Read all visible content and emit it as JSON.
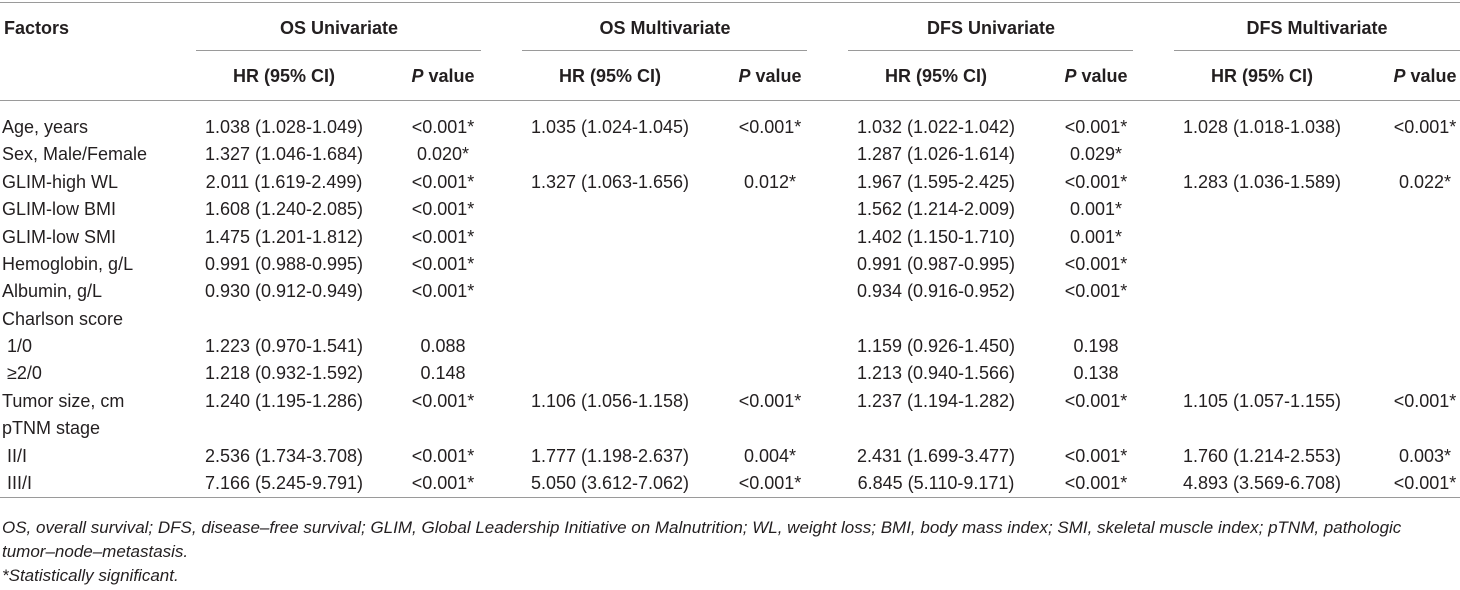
{
  "table": {
    "factor_header": "Factors",
    "groups": [
      "OS Univariate",
      "OS Multivariate",
      "DFS Univariate",
      "DFS Multivariate"
    ],
    "subheaders": [
      "HR (95% CI)",
      "P value"
    ],
    "rows": [
      {
        "label": "Age, years",
        "cells": [
          "1.038 (1.028-1.049)",
          "<0.001*",
          "1.035 (1.024-1.045)",
          "<0.001*",
          "1.032 (1.022-1.042)",
          "<0.001*",
          "1.028 (1.018-1.038)",
          "<0.001*"
        ]
      },
      {
        "label": "Sex, Male/Female",
        "cells": [
          "1.327 (1.046-1.684)",
          "0.020*",
          null,
          null,
          "1.287 (1.026-1.614)",
          "0.029*",
          null,
          null
        ]
      },
      {
        "label": "GLIM-high WL",
        "cells": [
          "2.011 (1.619-2.499)",
          "<0.001*",
          "1.327 (1.063-1.656)",
          "0.012*",
          "1.967 (1.595-2.425)",
          "<0.001*",
          "1.283 (1.036-1.589)",
          "0.022*"
        ]
      },
      {
        "label": "GLIM-low BMI",
        "cells": [
          "1.608 (1.240-2.085)",
          "<0.001*",
          null,
          null,
          "1.562 (1.214-2.009)",
          "0.001*",
          null,
          null
        ]
      },
      {
        "label": "GLIM-low SMI",
        "cells": [
          "1.475 (1.201-1.812)",
          "<0.001*",
          null,
          null,
          "1.402 (1.150-1.710)",
          "0.001*",
          null,
          null
        ]
      },
      {
        "label": "Hemoglobin, g/L",
        "cells": [
          "0.991 (0.988-0.995)",
          "<0.001*",
          null,
          null,
          "0.991 (0.987-0.995)",
          "<0.001*",
          null,
          null
        ]
      },
      {
        "label": "Albumin, g/L",
        "cells": [
          "0.930 (0.912-0.949)",
          "<0.001*",
          null,
          null,
          "0.934 (0.916-0.952)",
          "<0.001*",
          null,
          null
        ]
      },
      {
        "label": "Charlson score",
        "cells": [
          null,
          null,
          null,
          null,
          null,
          null,
          null,
          null
        ]
      },
      {
        "label": " 1/0",
        "cells": [
          "1.223 (0.970-1.541)",
          "0.088",
          null,
          null,
          "1.159 (0.926-1.450)",
          "0.198",
          null,
          null
        ]
      },
      {
        "label": " ≥2/0",
        "cells": [
          "1.218 (0.932-1.592)",
          "0.148",
          null,
          null,
          "1.213 (0.940-1.566)",
          "0.138",
          null,
          null
        ]
      },
      {
        "label": "Tumor size, cm",
        "cells": [
          "1.240 (1.195-1.286)",
          "<0.001*",
          "1.106 (1.056-1.158)",
          "<0.001*",
          "1.237 (1.194-1.282)",
          "<0.001*",
          "1.105 (1.057-1.155)",
          "<0.001*"
        ]
      },
      {
        "label": "pTNM stage",
        "cells": [
          null,
          null,
          null,
          null,
          null,
          null,
          null,
          null
        ]
      },
      {
        "label": " II/I",
        "cells": [
          "2.536 (1.734-3.708)",
          "<0.001*",
          "1.777 (1.198-2.637)",
          "0.004*",
          "2.431 (1.699-3.477)",
          "<0.001*",
          "1.760 (1.214-2.553)",
          "0.003*"
        ]
      },
      {
        "label": " III/I",
        "cells": [
          "7.166 (5.245-9.791)",
          "<0.001*",
          "5.050 (3.612-7.062)",
          "<0.001*",
          "6.845 (5.110-9.171)",
          "<0.001*",
          "4.893 (3.569-6.708)",
          "<0.001*"
        ]
      }
    ],
    "footnotes": [
      "OS, overall survival; DFS, disease–free survival; GLIM, Global Leadership Initiative on Malnutrition; WL, weight loss; BMI, body mass index; SMI, skeletal muscle index; pTNM, pathologic tumor–node–metastasis.",
      "*Statistically significant."
    ]
  }
}
